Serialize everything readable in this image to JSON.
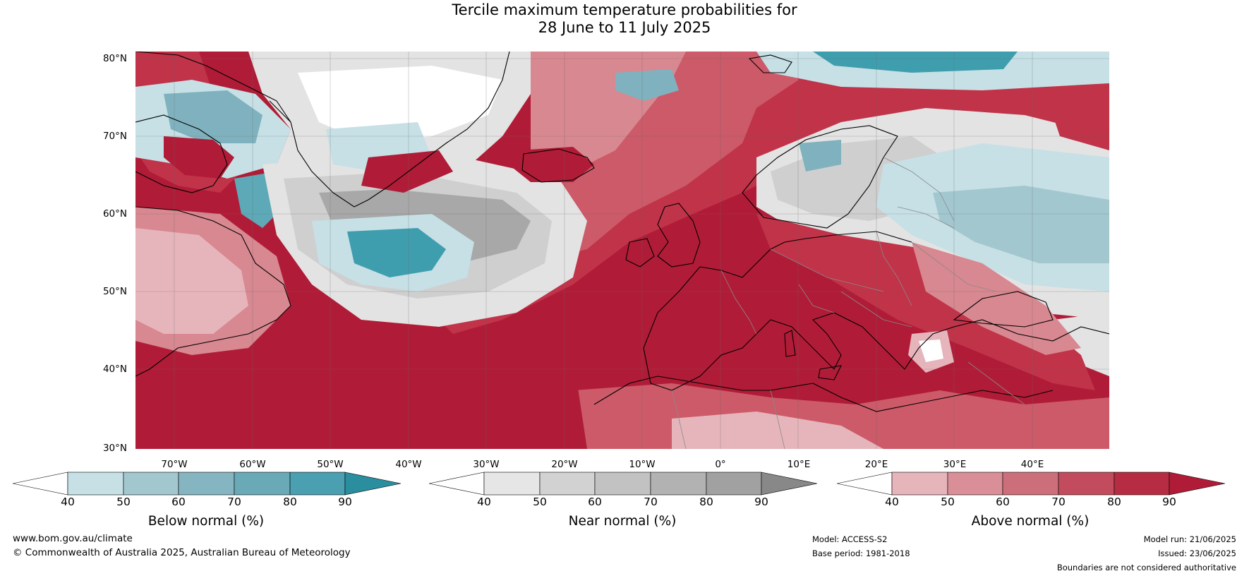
{
  "title": {
    "line1": "Tercile maximum temperature probabilities for",
    "line2": "28 June to 11 July 2025"
  },
  "map": {
    "lat_labels": [
      "80°N",
      "70°N",
      "60°N",
      "50°N",
      "40°N",
      "30°N"
    ],
    "lon_labels": [
      "70°W",
      "60°W",
      "50°W",
      "40°W",
      "30°W",
      "20°W",
      "10°W",
      "0°",
      "10°E",
      "20°E",
      "30°E",
      "40°E"
    ],
    "colors": {
      "above_90": "#b01c37",
      "above_80": "#c03348",
      "above_70": "#cc5a68",
      "above_60": "#d88890",
      "above_50": "#e6b5bb",
      "white": "#ffffff",
      "near_50": "#e3e3e3",
      "near_60": "#cfcfcf",
      "near_70": "#bdbdbd",
      "near_80": "#a8a8a8",
      "below_50": "#c6e0e6",
      "below_60": "#a3c7cf",
      "below_70": "#7fb2be",
      "below_80": "#5ea9b7",
      "below_90": "#3f9eae",
      "coast": "#000000",
      "border": "#8a8a8a"
    }
  },
  "colorbars": [
    {
      "title": "Below normal (%)",
      "ticks": [
        "40",
        "50",
        "60",
        "70",
        "80",
        "90"
      ],
      "colors": [
        "#ffffff",
        "#c6e0e6",
        "#a3c7cf",
        "#86b5c2",
        "#6aaab7",
        "#4a9fb0",
        "#2a8e9f"
      ]
    },
    {
      "title": "Near normal (%)",
      "ticks": [
        "40",
        "50",
        "60",
        "70",
        "80",
        "90"
      ],
      "colors": [
        "#ffffff",
        "#e6e6e6",
        "#d2d2d2",
        "#c2c2c2",
        "#b2b2b2",
        "#a1a1a1",
        "#888888"
      ]
    },
    {
      "title": "Above normal (%)",
      "ticks": [
        "40",
        "50",
        "60",
        "70",
        "80",
        "90"
      ],
      "colors": [
        "#ffffff",
        "#e6b5bb",
        "#da8e97",
        "#cd6f7b",
        "#c24c5d",
        "#b62d43",
        "#b01c37"
      ]
    }
  ],
  "footer": {
    "website": "www.bom.gov.au/climate",
    "copyright": "© Commonwealth of Australia 2025, Australian Bureau of Meteorology",
    "model": "Model: ACCESS-S2",
    "base_period": "Base period: 1981-2018",
    "model_run": "Model run: 21/06/2025",
    "issued": "Issued: 23/06/2025",
    "disclaimer": "Boundaries are not considered authoritative"
  }
}
